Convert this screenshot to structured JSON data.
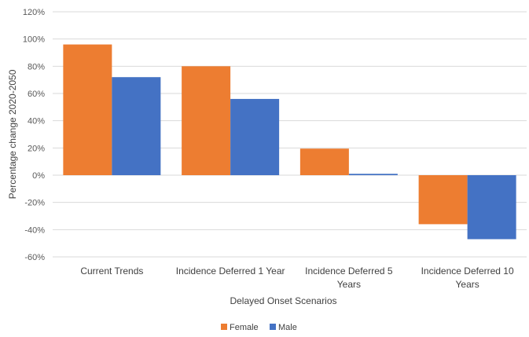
{
  "chart_data": {
    "type": "bar",
    "title": "",
    "xlabel": "Delayed Onset Scenarios",
    "ylabel": "Percentage change 2020-2050",
    "ylim": [
      -60,
      120
    ],
    "ytick_step": 20,
    "ytick_suffix": "%",
    "grid": true,
    "legend_position": "bottom",
    "categories": [
      [
        "Current Trends"
      ],
      [
        "Incidence Deferred 1 Year"
      ],
      [
        "Incidence Deferred 5",
        "Years"
      ],
      [
        "Incidence Deferred 10",
        "Years"
      ]
    ],
    "series": [
      {
        "name": "Female",
        "color": "#ED7D31",
        "values": [
          96,
          80,
          19.5,
          -36
        ]
      },
      {
        "name": "Male",
        "color": "#4472C4",
        "values": [
          72,
          56,
          1,
          -47
        ]
      }
    ]
  }
}
